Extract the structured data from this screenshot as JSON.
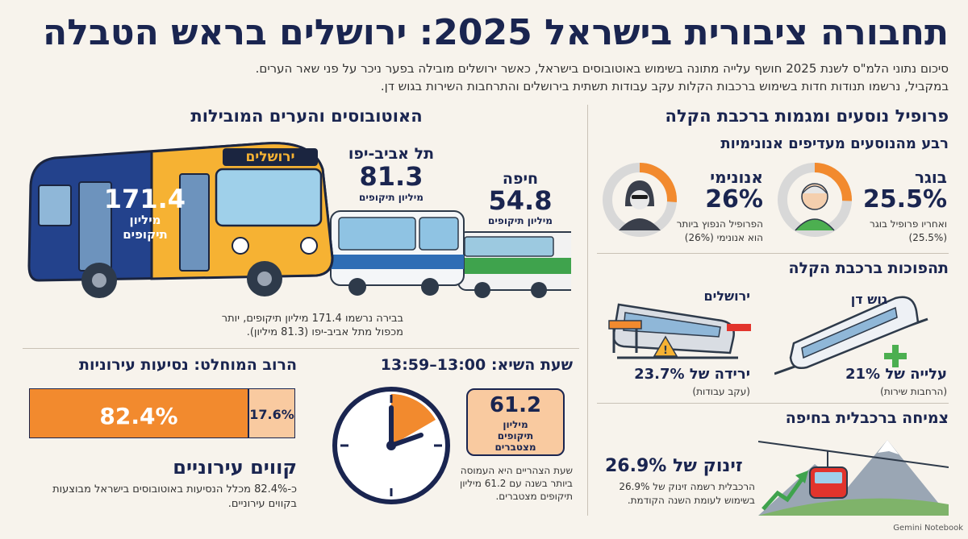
{
  "title": "תחבורה ציבורית בישראל 2025: ירושלים בראש הטבלה",
  "intro": {
    "line1": "סיכום נתוני הלמ\"ס לשנת 2025 חושף עלייה מתונה בשימוש באוטובוסים בישראל, כאשר ירושלים מובילה בפער ניכר על פני שאר הערים.",
    "line2": "במקביל, נרשמו תנודות חדות בשימוש ברכבות הקלות עקב עבודות תשתית בירושלים והתרחבות השירות בגוש דן."
  },
  "buses": {
    "section_title": "האוטובוסים והערים המובילות",
    "jerusalem": {
      "destination": "ירושלים",
      "value": "171.4",
      "unit_line1": "מיליון",
      "unit_line2": "תיקופים"
    },
    "telaviv": {
      "name": "תל אביב-יפו",
      "value": "81.3",
      "unit": "מיליון תיקופים"
    },
    "haifa": {
      "name": "חיפה",
      "value": "54.8",
      "unit": "מיליון תיקופים"
    },
    "caption_line1": "בבירה נרשמו 171.4 מיליון תיקופים, יותר",
    "caption_line2": "מכפול מתל אביב-יפו (81.3 מיליון)."
  },
  "profile": {
    "section_title": "פרופיל נוסעים ומגמות ברכבת הקלה",
    "sub_title": "רבע מהנוסעים מעדיפים אנונימיות",
    "senior": {
      "label": "בוגר",
      "value": "25.5%",
      "fraction": 0.255,
      "note_line1": "ואחריו פרופיל בוגר",
      "note_line2": "(25.5%)"
    },
    "anonymous": {
      "label": "אנונימי",
      "value": "26%",
      "fraction": 0.26,
      "note_line1": "הפרופיל הנפוץ ביותר",
      "note_line2": "הוא אנונימי (26%)"
    }
  },
  "light_rail": {
    "section_title": "תהפוכות ברכבת הקלה",
    "gush_dan": {
      "name": "גוש דן",
      "change": "עלייה של 21%",
      "note": "(הרחבות שירות)"
    },
    "jerusalem": {
      "name": "ירושלים",
      "change": "ירידה של 23.7%",
      "note": "(עקב עבודות)"
    }
  },
  "cable_car": {
    "section_title": "צמיחה ברכבלית בחיפה",
    "headline": "זינוק של 26.9%",
    "note_line1": "הרכבלית רשמה זינוק של 26.9%",
    "note_line2": "בשימוש לעומת השנה הקודמת."
  },
  "peak": {
    "section_title": "שעת השיא: 13:00–13:59",
    "value": "61.2",
    "unit_line1": "מיליון",
    "unit_line2": "תיקופים",
    "unit_line3": "מצטברים",
    "note_line1": "שעת הצהריים היא העמוסה",
    "note_line2": "ביותר בשנה עם 61.2 מיליון",
    "note_line3": "תיקופים מצטברים."
  },
  "urban": {
    "section_title": "הרוב המוחלט: נסיעות עירוניות",
    "urban_value": "82.4%",
    "other_value": "17.6%",
    "urban_fraction": 0.824,
    "headline": "קווים עירוניים",
    "note_line1": "כ-82.4% מכלל הנסיעות באוטובוסים בישראל מבוצעות",
    "note_line2": "בקווים עירוניים."
  },
  "footer": {
    "brand": "Gemini Notebook"
  },
  "colors": {
    "navy": "#1a2550",
    "orange": "#f28a2e",
    "peach": "#f9caa0",
    "bus_yellow": "#f6b233",
    "bus_blue": "#23428c",
    "green": "#4caf50",
    "red": "#e2342c"
  }
}
